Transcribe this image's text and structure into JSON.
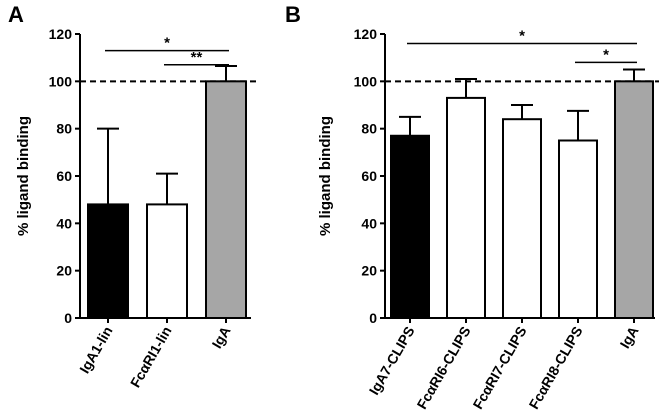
{
  "chart_data": [
    {
      "type": "bar",
      "panel_label": "A",
      "categories": [
        "IgA1-lin",
        "FcαRI1-lin",
        "IgA"
      ],
      "values": [
        48,
        48,
        100
      ],
      "errors": [
        32,
        13,
        6.5
      ],
      "colors": [
        "#000000",
        "#ffffff",
        "#a6a6a6"
      ],
      "ylabel": "% ligand binding",
      "ylim": [
        0,
        120
      ],
      "yticks": [
        "0",
        "20",
        "40",
        "60",
        "80",
        "100",
        "120"
      ],
      "reference_line": 100,
      "significance": [
        {
          "from": 0,
          "to": 2,
          "label": "*",
          "y": 113
        },
        {
          "from": 1,
          "to": 2,
          "label": "**",
          "y": 107
        }
      ]
    },
    {
      "type": "bar",
      "panel_label": "B",
      "categories": [
        "IgA7-CLIPS",
        "FcαRI6-CLIPS",
        "FcαRI7-CLIPS",
        "FcαRI8-CLIPS",
        "IgA"
      ],
      "values": [
        77,
        93,
        84,
        75,
        100
      ],
      "errors": [
        8,
        8,
        6,
        12.5,
        5
      ],
      "colors": [
        "#000000",
        "#ffffff",
        "#ffffff",
        "#ffffff",
        "#a6a6a6"
      ],
      "ylabel": "% ligand binding",
      "ylim": [
        0,
        120
      ],
      "yticks": [
        "0",
        "20",
        "40",
        "60",
        "80",
        "100",
        "120"
      ],
      "reference_line": 100,
      "significance": [
        {
          "from": 0,
          "to": 4,
          "label": "*",
          "y": 116
        },
        {
          "from": 3,
          "to": 4,
          "label": "*",
          "y": 108
        }
      ]
    }
  ]
}
